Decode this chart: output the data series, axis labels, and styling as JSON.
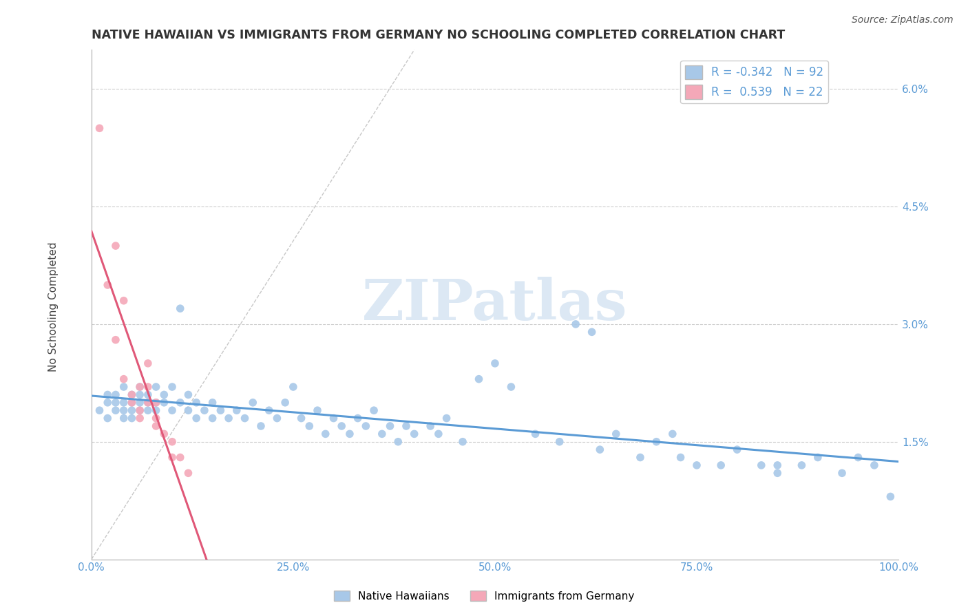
{
  "title": "NATIVE HAWAIIAN VS IMMIGRANTS FROM GERMANY NO SCHOOLING COMPLETED CORRELATION CHART",
  "source": "Source: ZipAtlas.com",
  "ylabel": "No Schooling Completed",
  "yticks": [
    "1.5%",
    "3.0%",
    "4.5%",
    "6.0%"
  ],
  "ytick_vals": [
    0.015,
    0.03,
    0.045,
    0.06
  ],
  "xtick_vals": [
    0.0,
    0.25,
    0.5,
    0.75,
    1.0
  ],
  "xtick_labels": [
    "0.0%",
    "25.0%",
    "50.0%",
    "75.0%",
    "100.0%"
  ],
  "xlim": [
    0.0,
    1.0
  ],
  "ylim": [
    0.0,
    0.065
  ],
  "r_blue": -0.342,
  "n_blue": 92,
  "r_pink": 0.539,
  "n_pink": 22,
  "blue_color": "#A8C8E8",
  "pink_color": "#F4A8B8",
  "blue_line_color": "#5B9BD5",
  "pink_line_color": "#E05878",
  "watermark": "ZIPatlas",
  "blue_scatter_x": [
    0.01,
    0.02,
    0.02,
    0.02,
    0.03,
    0.03,
    0.03,
    0.04,
    0.04,
    0.04,
    0.04,
    0.05,
    0.05,
    0.05,
    0.05,
    0.06,
    0.06,
    0.06,
    0.06,
    0.07,
    0.07,
    0.07,
    0.08,
    0.08,
    0.08,
    0.09,
    0.09,
    0.1,
    0.1,
    0.11,
    0.11,
    0.12,
    0.12,
    0.13,
    0.13,
    0.14,
    0.15,
    0.15,
    0.16,
    0.17,
    0.18,
    0.19,
    0.2,
    0.21,
    0.22,
    0.23,
    0.24,
    0.25,
    0.26,
    0.27,
    0.28,
    0.29,
    0.3,
    0.31,
    0.32,
    0.33,
    0.34,
    0.35,
    0.36,
    0.37,
    0.38,
    0.39,
    0.4,
    0.42,
    0.43,
    0.44,
    0.46,
    0.48,
    0.5,
    0.52,
    0.55,
    0.58,
    0.6,
    0.63,
    0.65,
    0.68,
    0.7,
    0.73,
    0.75,
    0.78,
    0.8,
    0.83,
    0.85,
    0.88,
    0.9,
    0.93,
    0.95,
    0.97,
    0.99,
    0.62,
    0.72,
    0.85
  ],
  "blue_scatter_y": [
    0.019,
    0.02,
    0.021,
    0.018,
    0.02,
    0.019,
    0.021,
    0.018,
    0.02,
    0.022,
    0.019,
    0.02,
    0.021,
    0.019,
    0.018,
    0.02,
    0.021,
    0.019,
    0.022,
    0.02,
    0.019,
    0.021,
    0.02,
    0.019,
    0.022,
    0.02,
    0.021,
    0.019,
    0.022,
    0.02,
    0.032,
    0.019,
    0.021,
    0.018,
    0.02,
    0.019,
    0.018,
    0.02,
    0.019,
    0.018,
    0.019,
    0.018,
    0.02,
    0.017,
    0.019,
    0.018,
    0.02,
    0.022,
    0.018,
    0.017,
    0.019,
    0.016,
    0.018,
    0.017,
    0.016,
    0.018,
    0.017,
    0.019,
    0.016,
    0.017,
    0.015,
    0.017,
    0.016,
    0.017,
    0.016,
    0.018,
    0.015,
    0.023,
    0.025,
    0.022,
    0.016,
    0.015,
    0.03,
    0.014,
    0.016,
    0.013,
    0.015,
    0.013,
    0.012,
    0.012,
    0.014,
    0.012,
    0.011,
    0.012,
    0.013,
    0.011,
    0.013,
    0.012,
    0.008,
    0.029,
    0.016,
    0.012
  ],
  "pink_scatter_x": [
    0.01,
    0.02,
    0.03,
    0.03,
    0.04,
    0.04,
    0.05,
    0.05,
    0.06,
    0.06,
    0.06,
    0.07,
    0.07,
    0.07,
    0.08,
    0.08,
    0.08,
    0.09,
    0.1,
    0.1,
    0.11,
    0.12
  ],
  "pink_scatter_y": [
    0.055,
    0.035,
    0.04,
    0.028,
    0.033,
    0.023,
    0.021,
    0.02,
    0.018,
    0.022,
    0.019,
    0.02,
    0.022,
    0.025,
    0.018,
    0.017,
    0.02,
    0.016,
    0.015,
    0.013,
    0.013,
    0.011
  ]
}
